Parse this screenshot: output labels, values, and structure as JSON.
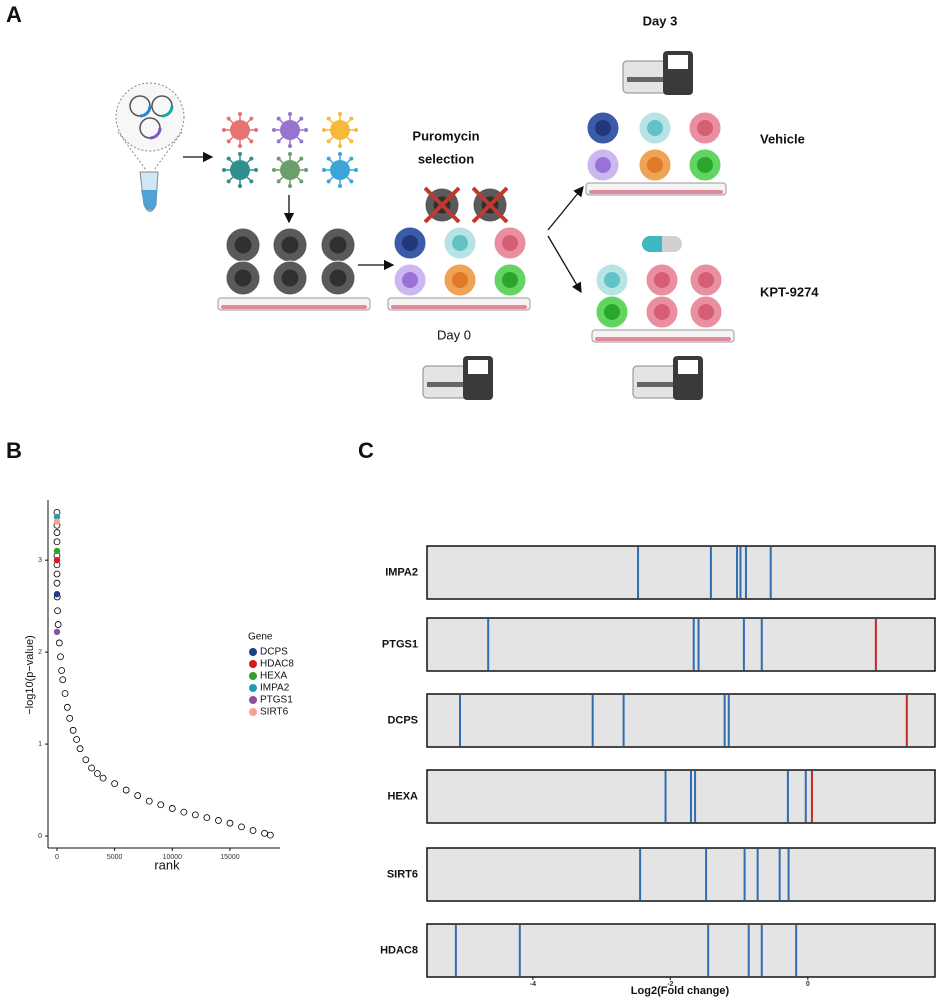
{
  "panel_labels": [
    "A",
    "B",
    "C"
  ],
  "schematic": {
    "day3": "Day 3",
    "selection": [
      "Puromycin",
      "selection"
    ],
    "day0": "Day 0",
    "vehicle": "Vehicle",
    "treatment": "KPT-9274"
  },
  "chart_data": [
    {
      "type": "scatter",
      "xlabel": "rank",
      "ylabel": "−log10(p−value)",
      "x": [
        0,
        0,
        0,
        0,
        0,
        0,
        0,
        0,
        20,
        50,
        100,
        200,
        300,
        400,
        500,
        700,
        900,
        1100,
        1400,
        1700,
        2000,
        2500,
        3000,
        3500,
        4000,
        5000,
        6000,
        7000,
        8000,
        9000,
        10000,
        11000,
        12000,
        13000,
        14000,
        15000,
        16000,
        17000,
        18000,
        18500
      ],
      "values": [
        3.52,
        3.38,
        3.3,
        3.2,
        3.05,
        2.95,
        2.85,
        2.75,
        2.6,
        2.45,
        2.3,
        2.1,
        1.95,
        1.8,
        1.7,
        1.55,
        1.4,
        1.28,
        1.15,
        1.05,
        0.95,
        0.83,
        0.74,
        0.68,
        0.63,
        0.57,
        0.5,
        0.44,
        0.38,
        0.34,
        0.3,
        0.26,
        0.23,
        0.2,
        0.17,
        0.14,
        0.1,
        0.06,
        0.03,
        0.01
      ],
      "point_color": "#000000",
      "legend_title": "Gene",
      "series": [
        {
          "name": "DCPS",
          "color": "#1c3f86",
          "x": [
            0
          ],
          "values": [
            2.63
          ]
        },
        {
          "name": "HDAC8",
          "color": "#d7191c",
          "x": [
            0
          ],
          "values": [
            3.0
          ]
        },
        {
          "name": "HEXA",
          "color": "#33a02c",
          "x": [
            0
          ],
          "values": [
            3.1
          ]
        },
        {
          "name": "IMPA2",
          "color": "#1f9bb5",
          "x": [
            0
          ],
          "values": [
            3.47
          ]
        },
        {
          "name": "PTGS1",
          "color": "#8e4fa3",
          "x": [
            0
          ],
          "values": [
            2.22
          ]
        },
        {
          "name": "SIRT6",
          "color": "#f9a38a",
          "x": [
            0
          ],
          "values": [
            3.42
          ]
        }
      ],
      "xlim": [
        -780,
        19340
      ],
      "ylim": [
        -0.13,
        3.6
      ],
      "xticks": [
        0,
        5000,
        10000,
        15000
      ],
      "yticks": [
        0,
        1,
        2,
        3
      ]
    },
    {
      "type": "barcode",
      "xlabel": "Log2(Fold change)",
      "rows": [
        {
          "name": "IMPA2",
          "values": [
            -2.47,
            -1.41,
            -1.03,
            -0.98,
            -0.9,
            -0.54
          ],
          "line_colors": [
            "#2f6db3",
            "#2f6db3",
            "#2f6db3",
            "#2f6db3",
            "#2f6db3",
            "#2f6db3"
          ]
        },
        {
          "name": "PTGS1",
          "values": [
            -4.65,
            -1.66,
            -1.59,
            -0.93,
            -0.67,
            0.99
          ],
          "line_colors": [
            "#2f6db3",
            "#2f6db3",
            "#2f6db3",
            "#2f6db3",
            "#2f6db3",
            "#c62828"
          ]
        },
        {
          "name": "DCPS",
          "values": [
            -5.06,
            -3.13,
            -2.68,
            -1.21,
            -1.15,
            1.44
          ],
          "line_colors": [
            "#2f6db3",
            "#2f6db3",
            "#2f6db3",
            "#2f6db3",
            "#2f6db3",
            "#c62828"
          ]
        },
        {
          "name": "HEXA",
          "values": [
            -2.07,
            -1.7,
            -1.64,
            -0.29,
            -0.03,
            0.06
          ],
          "line_colors": [
            "#2f6db3",
            "#2f6db3",
            "#2f6db3",
            "#2f6db3",
            "#2f6db3",
            "#c62828"
          ]
        },
        {
          "name": "SIRT6",
          "values": [
            -2.44,
            -1.48,
            -0.92,
            -0.73,
            -0.41,
            -0.28
          ],
          "line_colors": [
            "#2f6db3",
            "#2f6db3",
            "#2f6db3",
            "#2f6db3",
            "#2f6db3",
            "#2f6db3"
          ]
        },
        {
          "name": "HDAC8",
          "values": [
            -5.12,
            -4.19,
            -1.45,
            -0.86,
            -0.67,
            -0.17
          ],
          "line_colors": [
            "#2f6db3",
            "#2f6db3",
            "#2f6db3",
            "#2f6db3",
            "#2f6db3",
            "#2f6db3"
          ]
        }
      ],
      "xlim": [
        -5.54,
        1.85
      ],
      "xticks": [
        -4,
        -2,
        0
      ]
    }
  ]
}
